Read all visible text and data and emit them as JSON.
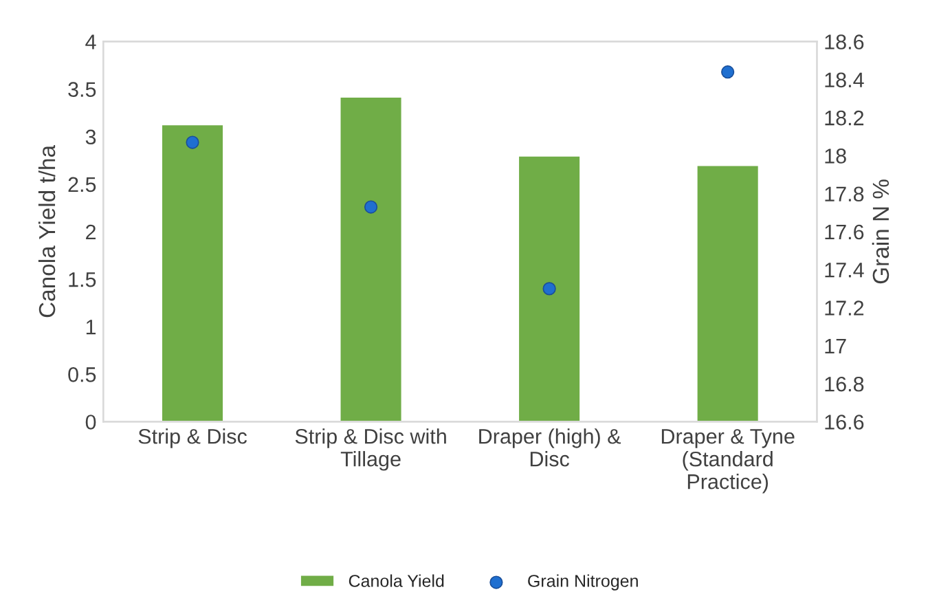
{
  "chart_data": {
    "type": "bar",
    "categories": [
      "Strip & Disc",
      "Strip & Disc with\nTillage",
      "Draper (high) &\nDisc",
      "Draper & Tyne\n(Standard\nPractice)"
    ],
    "ylabel": "Canola Yield t/ha",
    "y2label": "Grain N %",
    "ylim": [
      0,
      4
    ],
    "yticks": [
      0,
      0.5,
      1,
      1.5,
      2,
      2.5,
      3,
      3.5,
      4
    ],
    "y2lim": [
      16.6,
      18.6
    ],
    "y2ticks": [
      16.6,
      16.8,
      17,
      17.2,
      17.4,
      17.6,
      17.8,
      18,
      18.2,
      18.4,
      18.6
    ],
    "grid": false,
    "legend": "bottom",
    "series": [
      {
        "name": "Canola Yield",
        "color": "#70ad47",
        "values": [
          3.13,
          3.42,
          2.8,
          2.7
        ]
      },
      {
        "name": "Grain Nitrogen",
        "type": "scatter",
        "axis": "y2",
        "color": "#1f6fd0",
        "marker": "circle",
        "values": [
          18.07,
          17.73,
          17.3,
          18.44
        ]
      }
    ]
  }
}
